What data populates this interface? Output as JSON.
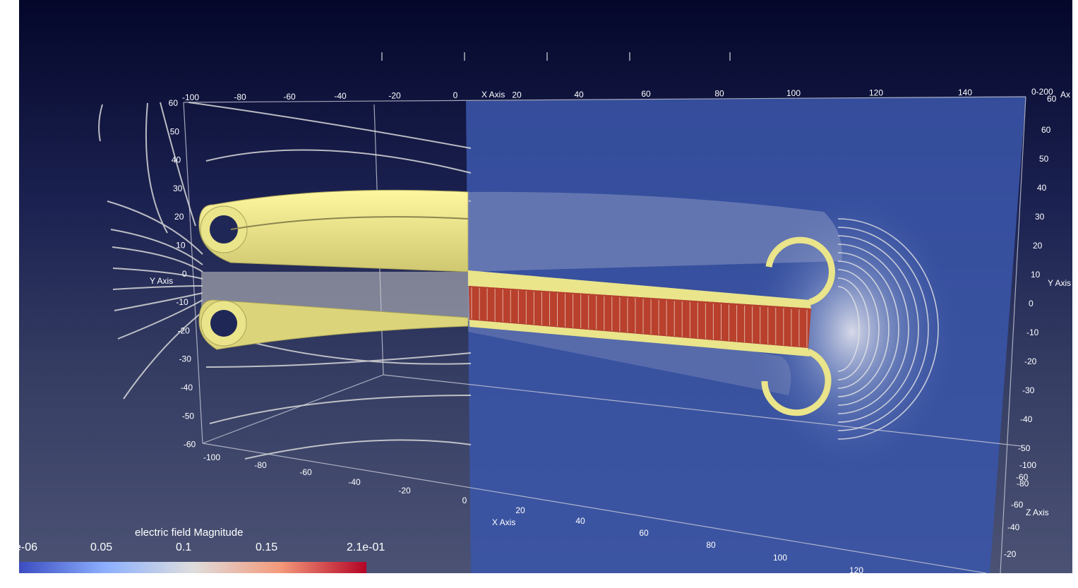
{
  "viewport": {
    "background_top": "#04072a",
    "background_bottom": "#4b5274"
  },
  "axes": {
    "x_axis_title": "X Axis",
    "y_axis_title": "Y Axis",
    "z_axis_title": "Z Axis",
    "top_x_ticks": [
      "-100",
      "-80",
      "-60",
      "-40",
      "-20",
      "0",
      "20",
      "40",
      "60",
      "80",
      "100",
      "120",
      "140"
    ],
    "top_corner_labels": [
      "0-200",
      "60",
      "Ax"
    ],
    "left_y_ticks": [
      "60",
      "50",
      "40",
      "30",
      "20",
      "10",
      "0",
      "-10",
      "-20",
      "-30",
      "-40",
      "-50",
      "-60"
    ],
    "right_y_ticks": [
      "60",
      "50",
      "40",
      "30",
      "20",
      "10",
      "0",
      "-10",
      "-20",
      "-30",
      "-40",
      "-50",
      "-60"
    ],
    "bottom_x_ticks": [
      "-100",
      "-80",
      "-60",
      "-40",
      "-20",
      "0",
      "20",
      "40",
      "60",
      "80",
      "100",
      "120"
    ],
    "right_z_ticks": [
      "-100",
      "-80",
      "-60",
      "-40",
      "-20"
    ]
  },
  "geometry_colors": {
    "electrode": "#eae48a",
    "electrode_shadow": "#c9c36a",
    "slice_plane": "#3a55a8",
    "streamline": "#d8d8d8",
    "field_high": "#b8402c"
  },
  "legend": {
    "title": "electric field Magnitude",
    "labels": [
      "e-06",
      "0.05",
      "0.1",
      "0.15",
      "2.1e-01"
    ],
    "colormap": [
      "#3b4cc0",
      "#8db0fe",
      "#dddddd",
      "#f49a7b",
      "#b40426"
    ]
  }
}
